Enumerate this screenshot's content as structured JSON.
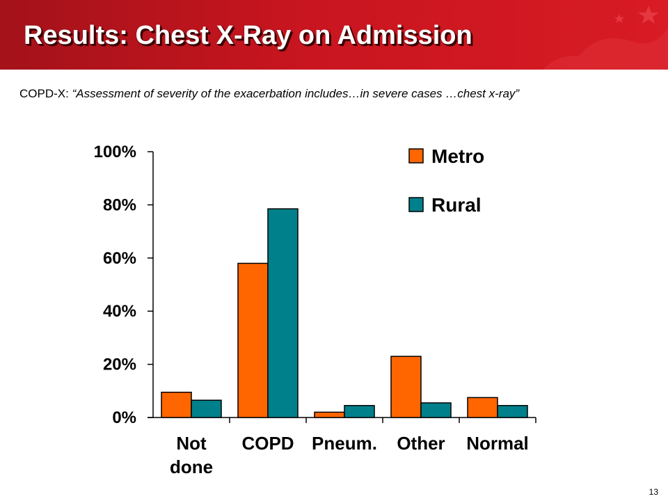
{
  "slide": {
    "title": "Results: Chest X-Ray on Admission",
    "subtitle_label": "COPD-X:",
    "subtitle_quote": "“Assessment of severity of the exacerbation includes…in severe cases …chest x-ray”",
    "page_number": "13"
  },
  "colors": {
    "header": "#c8151f",
    "metro": "#ff6600",
    "rural": "#00808b"
  },
  "chart_data": {
    "type": "bar",
    "categories": [
      [
        "Not",
        "done"
      ],
      [
        "COPD"
      ],
      [
        "Pneum."
      ],
      [
        "Other"
      ],
      [
        "Normal"
      ]
    ],
    "series": [
      {
        "name": "Metro",
        "color": "#ff6600",
        "values": [
          9.5,
          58,
          2,
          23,
          7.5
        ]
      },
      {
        "name": "Rural",
        "color": "#00808b",
        "values": [
          6.5,
          78.5,
          4.5,
          5.5,
          4.5
        ]
      }
    ],
    "yticks": [
      "0%",
      "20%",
      "40%",
      "60%",
      "80%",
      "100%"
    ],
    "ylim": [
      0,
      100
    ],
    "xlabel": "",
    "ylabel": "",
    "grid": false,
    "legend": "top-right"
  }
}
